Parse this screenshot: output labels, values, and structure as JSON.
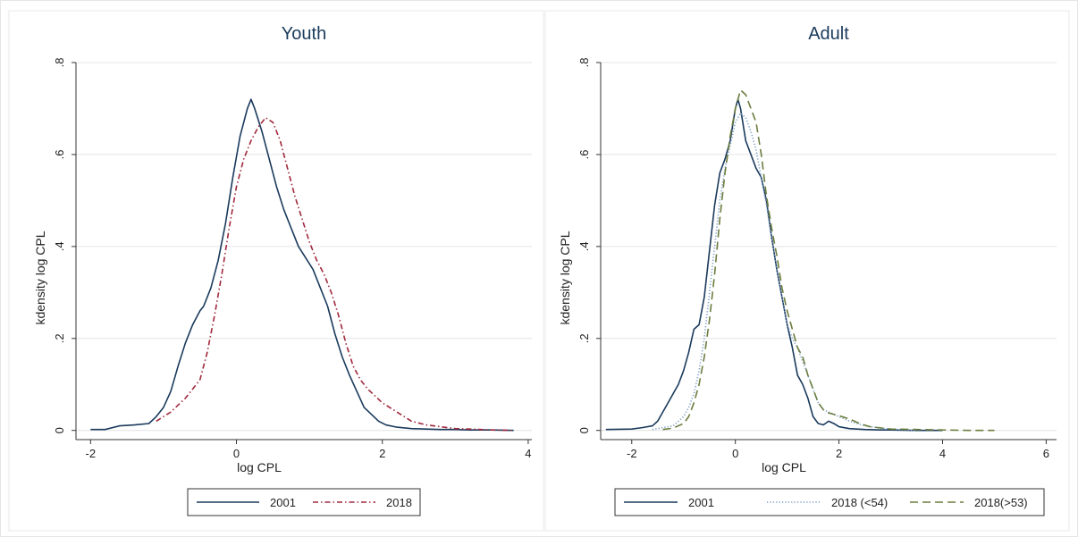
{
  "chart_data": [
    {
      "type": "line",
      "title": "Youth",
      "xlabel": "log CPL",
      "ylabel": "kdensity log CPL",
      "xlim": [
        -2.2,
        4.05
      ],
      "ylim": [
        -0.02,
        0.8
      ],
      "x_ticks": [
        {
          "value": -2,
          "label": "-2"
        },
        {
          "value": 0,
          "label": "0"
        },
        {
          "value": 2,
          "label": "2"
        },
        {
          "value": 4,
          "label": "4"
        }
      ],
      "y_ticks": [
        {
          "value": 0,
          "label": "0"
        },
        {
          "value": 0.2,
          "label": ".2"
        },
        {
          "value": 0.4,
          "label": ".4"
        },
        {
          "value": 0.6,
          "label": ".6"
        },
        {
          "value": 0.8,
          "label": ".8"
        }
      ],
      "grid": "horizontal",
      "legend_position": "bottom",
      "series": [
        {
          "name": "2001",
          "color": "#1a3a5c",
          "style": "solid",
          "x": [
            -2.0,
            -1.8,
            -1.6,
            -1.4,
            -1.2,
            -1.1,
            -1.0,
            -0.9,
            -0.8,
            -0.7,
            -0.6,
            -0.5,
            -0.45,
            -0.35,
            -0.25,
            -0.15,
            -0.05,
            0.05,
            0.15,
            0.2,
            0.25,
            0.35,
            0.45,
            0.55,
            0.65,
            0.75,
            0.85,
            0.95,
            1.05,
            1.15,
            1.25,
            1.35,
            1.45,
            1.55,
            1.65,
            1.75,
            1.85,
            1.95,
            2.05,
            2.2,
            2.4,
            2.6,
            2.8,
            3.0,
            3.2,
            3.5,
            3.8
          ],
          "y": [
            0.002,
            0.002,
            0.01,
            0.012,
            0.015,
            0.03,
            0.05,
            0.085,
            0.14,
            0.19,
            0.23,
            0.26,
            0.27,
            0.31,
            0.37,
            0.45,
            0.55,
            0.64,
            0.7,
            0.72,
            0.7,
            0.65,
            0.59,
            0.53,
            0.48,
            0.44,
            0.4,
            0.375,
            0.35,
            0.31,
            0.27,
            0.21,
            0.16,
            0.12,
            0.085,
            0.05,
            0.035,
            0.02,
            0.012,
            0.007,
            0.004,
            0.003,
            0.002,
            0.002,
            0.001,
            0.001,
            0.0
          ]
        },
        {
          "name": "2018",
          "color": "#a0283c",
          "style": "dashdot",
          "x": [
            -1.1,
            -0.9,
            -0.7,
            -0.6,
            -0.5,
            -0.4,
            -0.3,
            -0.2,
            -0.1,
            0.0,
            0.1,
            0.2,
            0.3,
            0.4,
            0.5,
            0.6,
            0.7,
            0.8,
            0.9,
            1.0,
            1.1,
            1.2,
            1.3,
            1.4,
            1.5,
            1.6,
            1.7,
            1.8,
            1.9,
            2.0,
            2.2,
            2.4,
            2.6,
            2.8,
            3.0,
            3.2,
            3.5,
            3.8
          ],
          "y": [
            0.02,
            0.04,
            0.07,
            0.09,
            0.11,
            0.17,
            0.25,
            0.34,
            0.44,
            0.53,
            0.59,
            0.63,
            0.66,
            0.68,
            0.67,
            0.63,
            0.57,
            0.51,
            0.46,
            0.41,
            0.37,
            0.34,
            0.3,
            0.25,
            0.19,
            0.14,
            0.11,
            0.09,
            0.075,
            0.06,
            0.04,
            0.02,
            0.012,
            0.008,
            0.004,
            0.003,
            0.001,
            0.0
          ]
        }
      ]
    },
    {
      "type": "line",
      "title": "Adult",
      "xlabel": "log CPL",
      "ylabel": "kdensity log CPL",
      "xlim": [
        -2.6,
        6.2
      ],
      "ylim": [
        -0.02,
        0.8
      ],
      "x_ticks": [
        {
          "value": -2,
          "label": "-2"
        },
        {
          "value": 0,
          "label": "0"
        },
        {
          "value": 2,
          "label": "2"
        },
        {
          "value": 4,
          "label": "4"
        },
        {
          "value": 6,
          "label": "6"
        }
      ],
      "y_ticks": [
        {
          "value": 0,
          "label": "0"
        },
        {
          "value": 0.2,
          "label": ".2"
        },
        {
          "value": 0.4,
          "label": ".4"
        },
        {
          "value": 0.6,
          "label": ".6"
        },
        {
          "value": 0.8,
          "label": ".8"
        }
      ],
      "grid": "horizontal",
      "legend_position": "bottom",
      "series": [
        {
          "name": "2001",
          "color": "#1a3a5c",
          "style": "solid",
          "x": [
            -2.5,
            -2.0,
            -1.8,
            -1.6,
            -1.5,
            -1.4,
            -1.3,
            -1.2,
            -1.1,
            -1.0,
            -0.9,
            -0.8,
            -0.7,
            -0.6,
            -0.5,
            -0.4,
            -0.3,
            -0.2,
            -0.1,
            0.0,
            0.05,
            0.1,
            0.2,
            0.3,
            0.4,
            0.5,
            0.6,
            0.7,
            0.8,
            0.9,
            1.0,
            1.1,
            1.2,
            1.3,
            1.4,
            1.5,
            1.6,
            1.7,
            1.8,
            1.9,
            2.0,
            2.2,
            2.5,
            2.8,
            3.0,
            3.5,
            4.0
          ],
          "y": [
            0.002,
            0.003,
            0.006,
            0.01,
            0.02,
            0.04,
            0.06,
            0.08,
            0.1,
            0.13,
            0.17,
            0.22,
            0.23,
            0.29,
            0.39,
            0.49,
            0.56,
            0.59,
            0.63,
            0.7,
            0.72,
            0.7,
            0.63,
            0.6,
            0.57,
            0.55,
            0.5,
            0.42,
            0.35,
            0.29,
            0.23,
            0.18,
            0.12,
            0.1,
            0.07,
            0.03,
            0.015,
            0.012,
            0.02,
            0.015,
            0.008,
            0.004,
            0.002,
            0.001,
            0.001,
            0.0,
            0.0
          ]
        },
        {
          "name": "2018 (<54)",
          "color": "#7a9cc0",
          "style": "dotted",
          "x": [
            -1.6,
            -1.2,
            -1.0,
            -0.9,
            -0.8,
            -0.7,
            -0.6,
            -0.5,
            -0.4,
            -0.3,
            -0.2,
            -0.1,
            0.0,
            0.1,
            0.2,
            0.3,
            0.4,
            0.5,
            0.6,
            0.7,
            0.8,
            0.9,
            1.0,
            1.1,
            1.2,
            1.3,
            1.4,
            1.5,
            1.6,
            1.7,
            1.8,
            2.0,
            2.2,
            2.5,
            2.8,
            3.0,
            3.5
          ],
          "y": [
            0.002,
            0.01,
            0.03,
            0.05,
            0.08,
            0.13,
            0.2,
            0.3,
            0.4,
            0.5,
            0.57,
            0.62,
            0.67,
            0.69,
            0.68,
            0.65,
            0.61,
            0.55,
            0.49,
            0.42,
            0.35,
            0.29,
            0.23,
            0.2,
            0.18,
            0.15,
            0.12,
            0.09,
            0.06,
            0.045,
            0.04,
            0.03,
            0.02,
            0.01,
            0.005,
            0.003,
            0.0
          ]
        },
        {
          "name": "2018(>53)",
          "color": "#6b7d3e",
          "style": "dashed",
          "x": [
            -1.4,
            -1.2,
            -1.0,
            -0.9,
            -0.8,
            -0.7,
            -0.6,
            -0.5,
            -0.4,
            -0.3,
            -0.2,
            -0.1,
            0.0,
            0.1,
            0.2,
            0.3,
            0.4,
            0.5,
            0.6,
            0.7,
            0.8,
            0.9,
            1.0,
            1.1,
            1.2,
            1.3,
            1.4,
            1.5,
            1.6,
            1.7,
            1.8,
            2.0,
            2.2,
            2.4,
            2.6,
            3.0,
            3.5,
            4.0,
            4.5,
            5.0
          ],
          "y": [
            0.002,
            0.005,
            0.015,
            0.03,
            0.06,
            0.1,
            0.16,
            0.24,
            0.34,
            0.46,
            0.56,
            0.64,
            0.7,
            0.74,
            0.73,
            0.7,
            0.67,
            0.6,
            0.51,
            0.44,
            0.38,
            0.31,
            0.26,
            0.22,
            0.18,
            0.16,
            0.12,
            0.09,
            0.06,
            0.045,
            0.038,
            0.032,
            0.025,
            0.015,
            0.008,
            0.003,
            0.002,
            0.001,
            0.0,
            0.0
          ]
        }
      ]
    }
  ]
}
